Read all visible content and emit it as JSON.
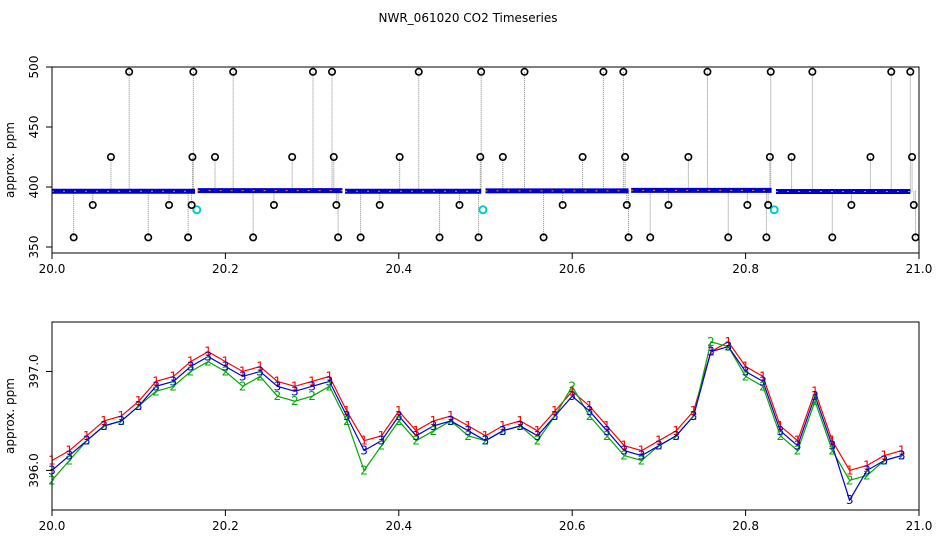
{
  "title": "NWR_061020  CO2 Timeseries",
  "chart_data": [
    {
      "type": "scatter",
      "title": "",
      "xlabel": "",
      "ylabel": "approx. ppm",
      "xlim": [
        20.0,
        21.0
      ],
      "ylim": [
        345,
        500
      ],
      "x_ticks": [
        "20.0",
        "20.2",
        "20.4",
        "20.6",
        "20.8",
        "21.0"
      ],
      "y_ticks": [
        "350",
        "400",
        "450",
        "500"
      ],
      "grid": false,
      "legend": "none",
      "colors": {
        "main": "#0000cc",
        "alt": "#ff8c00",
        "reference": "#00cccc",
        "flag": "#000000",
        "trace": "#888888"
      },
      "baseline_segments": [
        {
          "x_start": 20.0,
          "x_end": 20.165,
          "y": 396.5
        },
        {
          "x_start": 20.168,
          "x_end": 20.335,
          "y": 397.0
        },
        {
          "x_start": 20.338,
          "x_end": 20.495,
          "y": 396.5
        },
        {
          "x_start": 20.5,
          "x_end": 20.665,
          "y": 396.8
        },
        {
          "x_start": 20.668,
          "x_end": 20.83,
          "y": 397.2
        },
        {
          "x_start": 20.835,
          "x_end": 20.99,
          "y": 396.3
        }
      ],
      "reference_points": [
        {
          "x": 20.167,
          "y": 381
        },
        {
          "x": 20.497,
          "y": 381
        },
        {
          "x": 20.833,
          "y": 381
        }
      ],
      "flagged_points": [
        {
          "x": 20.025,
          "y": 358
        },
        {
          "x": 20.047,
          "y": 385
        },
        {
          "x": 20.068,
          "y": 425
        },
        {
          "x": 20.089,
          "y": 496
        },
        {
          "x": 20.111,
          "y": 358
        },
        {
          "x": 20.135,
          "y": 385
        },
        {
          "x": 20.157,
          "y": 358
        },
        {
          "x": 20.161,
          "y": 385
        },
        {
          "x": 20.162,
          "y": 425
        },
        {
          "x": 20.163,
          "y": 496
        },
        {
          "x": 20.188,
          "y": 425
        },
        {
          "x": 20.209,
          "y": 496
        },
        {
          "x": 20.232,
          "y": 358
        },
        {
          "x": 20.256,
          "y": 385
        },
        {
          "x": 20.277,
          "y": 425
        },
        {
          "x": 20.301,
          "y": 496
        },
        {
          "x": 20.323,
          "y": 496
        },
        {
          "x": 20.325,
          "y": 425
        },
        {
          "x": 20.328,
          "y": 385
        },
        {
          "x": 20.33,
          "y": 358
        },
        {
          "x": 20.356,
          "y": 358
        },
        {
          "x": 20.378,
          "y": 385
        },
        {
          "x": 20.401,
          "y": 425
        },
        {
          "x": 20.423,
          "y": 496
        },
        {
          "x": 20.447,
          "y": 358
        },
        {
          "x": 20.47,
          "y": 385
        },
        {
          "x": 20.492,
          "y": 358
        },
        {
          "x": 20.494,
          "y": 425
        },
        {
          "x": 20.495,
          "y": 496
        },
        {
          "x": 20.52,
          "y": 425
        },
        {
          "x": 20.545,
          "y": 496
        },
        {
          "x": 20.567,
          "y": 358
        },
        {
          "x": 20.589,
          "y": 385
        },
        {
          "x": 20.612,
          "y": 425
        },
        {
          "x": 20.636,
          "y": 496
        },
        {
          "x": 20.659,
          "y": 496
        },
        {
          "x": 20.661,
          "y": 425
        },
        {
          "x": 20.663,
          "y": 385
        },
        {
          "x": 20.665,
          "y": 358
        },
        {
          "x": 20.69,
          "y": 358
        },
        {
          "x": 20.711,
          "y": 385
        },
        {
          "x": 20.734,
          "y": 425
        },
        {
          "x": 20.756,
          "y": 496
        },
        {
          "x": 20.78,
          "y": 358
        },
        {
          "x": 20.802,
          "y": 385
        },
        {
          "x": 20.824,
          "y": 358
        },
        {
          "x": 20.826,
          "y": 385
        },
        {
          "x": 20.828,
          "y": 425
        },
        {
          "x": 20.829,
          "y": 496
        },
        {
          "x": 20.853,
          "y": 425
        },
        {
          "x": 20.877,
          "y": 496
        },
        {
          "x": 20.9,
          "y": 358
        },
        {
          "x": 20.922,
          "y": 385
        },
        {
          "x": 20.944,
          "y": 425
        },
        {
          "x": 20.968,
          "y": 496
        },
        {
          "x": 20.99,
          "y": 496
        },
        {
          "x": 20.992,
          "y": 425
        },
        {
          "x": 20.994,
          "y": 385
        },
        {
          "x": 20.996,
          "y": 358
        }
      ]
    },
    {
      "type": "line",
      "title": "",
      "xlabel": "",
      "ylabel": "approx. ppm",
      "xlim": [
        20.0,
        21.0
      ],
      "ylim": [
        395.6,
        397.5
      ],
      "x_ticks": [
        "20.0",
        "20.2",
        "20.4",
        "20.6",
        "20.8",
        "21.0"
      ],
      "y_ticks": [
        "396.0",
        "397.0"
      ],
      "grid": false,
      "legend": "none",
      "colors": {
        "series1": "#ff0000",
        "series2": "#00aa00",
        "series3": "#0000cc"
      },
      "point_labels": [
        "1",
        "2",
        "3"
      ],
      "x": [
        20.0,
        20.02,
        20.04,
        20.06,
        20.08,
        20.1,
        20.12,
        20.14,
        20.16,
        20.18,
        20.2,
        20.22,
        20.24,
        20.26,
        20.28,
        20.3,
        20.32,
        20.34,
        20.36,
        20.38,
        20.4,
        20.42,
        20.44,
        20.46,
        20.48,
        20.5,
        20.52,
        20.54,
        20.56,
        20.58,
        20.6,
        20.62,
        20.64,
        20.66,
        20.68,
        20.7,
        20.72,
        20.74,
        20.76,
        20.78,
        20.8,
        20.82,
        20.84,
        20.86,
        20.88,
        20.9,
        20.92,
        20.94,
        20.96,
        20.98
      ],
      "series": [
        {
          "values": [
            396.1,
            396.2,
            396.35,
            396.5,
            396.55,
            396.7,
            396.9,
            396.95,
            397.1,
            397.2,
            397.1,
            397.0,
            397.05,
            396.9,
            396.85,
            396.9,
            396.95,
            396.6,
            396.3,
            396.35,
            396.6,
            396.4,
            396.5,
            396.55,
            396.45,
            396.35,
            396.45,
            396.5,
            396.4,
            396.6,
            396.8,
            396.65,
            396.45,
            396.25,
            396.2,
            396.3,
            396.4,
            396.6,
            397.2,
            397.3,
            397.05,
            396.95,
            396.45,
            396.3,
            396.8,
            396.3,
            396.0,
            396.05,
            396.15,
            396.2
          ]
        },
        {
          "values": [
            395.9,
            396.1,
            396.3,
            396.45,
            396.5,
            396.65,
            396.8,
            396.85,
            397.0,
            397.1,
            397.0,
            396.85,
            396.95,
            396.75,
            396.7,
            396.75,
            396.85,
            396.5,
            396.0,
            396.25,
            396.5,
            396.3,
            396.4,
            396.5,
            396.35,
            396.3,
            396.4,
            396.45,
            396.3,
            396.55,
            396.85,
            396.55,
            396.35,
            396.15,
            396.1,
            396.25,
            396.35,
            396.55,
            397.3,
            397.25,
            396.95,
            396.85,
            396.35,
            396.2,
            396.7,
            396.2,
            395.9,
            395.95,
            396.1,
            396.15
          ]
        },
        {
          "values": [
            396.0,
            396.15,
            396.3,
            396.45,
            396.5,
            396.65,
            396.85,
            396.9,
            397.05,
            397.15,
            397.05,
            396.95,
            397.0,
            396.85,
            396.8,
            396.85,
            396.9,
            396.55,
            396.2,
            396.3,
            396.55,
            396.35,
            396.45,
            396.5,
            396.4,
            396.3,
            396.4,
            396.45,
            396.35,
            396.55,
            396.75,
            396.6,
            396.4,
            396.2,
            396.15,
            396.25,
            396.35,
            396.55,
            397.2,
            397.25,
            397.0,
            396.9,
            396.4,
            396.25,
            396.75,
            396.25,
            395.7,
            396.0,
            396.1,
            396.15
          ]
        }
      ]
    }
  ]
}
